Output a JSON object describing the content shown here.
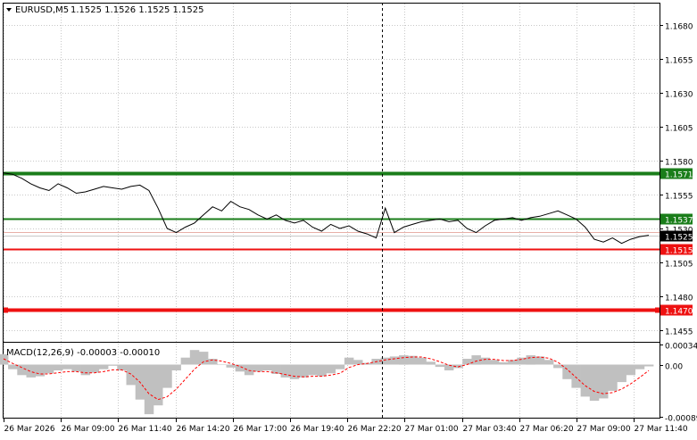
{
  "header": {
    "symbol_label": "EURUSD,M5",
    "ohlc_label": "1.1525 1.1526 1.1525 1.1525"
  },
  "macd_label": "MACD(12,26,9) -0.00003 -0.00010",
  "colors": {
    "price_line": "#000000",
    "green_level": "#1a7d1a",
    "red_level": "#ee1111",
    "macd_hist": "#c0c0c0",
    "macd_signal": "#ff0000",
    "grid": "#c8c8c8",
    "vline": "#000000",
    "current_price_tag": "#000000"
  },
  "chart_data": [
    {
      "type": "line",
      "title": "EURUSD,M5",
      "ylim": [
        1.1447,
        1.1696
      ],
      "y_ticks": [
        "1.1680",
        "1.1655",
        "1.1630",
        "1.1605",
        "1.1580",
        "1.1555",
        "1.1530",
        "1.1505",
        "1.1480",
        "1.1455"
      ],
      "x_ticks": [
        "26 Mar 2026",
        "26 Mar 09:00",
        "26 Mar 11:40",
        "26 Mar 14:20",
        "26 Mar 17:00",
        "26 Mar 19:40",
        "26 Mar 22:20",
        "27 Mar 01:00",
        "27 Mar 03:40",
        "27 Mar 06:20",
        "27 Mar 09:00",
        "27 Mar 11:40"
      ],
      "levels": [
        {
          "value": 1.1571,
          "label": "1.1571",
          "color": "green",
          "thick": true
        },
        {
          "value": 1.1537,
          "label": "1.1537",
          "color": "green",
          "thick": false
        },
        {
          "value": 1.1515,
          "label": "1.1515",
          "color": "red",
          "thick": false
        },
        {
          "value": 1.147,
          "label": "1.1470",
          "color": "red",
          "thick": true
        }
      ],
      "current_price": {
        "value": 1.1525,
        "label": "1.1525"
      },
      "series": [
        {
          "values": [
            1.1571,
            1.157,
            1.1567,
            1.1563,
            1.156,
            1.1558,
            1.1563,
            1.156,
            1.1556,
            1.1557,
            1.1559,
            1.1561,
            1.156,
            1.1559,
            1.1561,
            1.1562,
            1.1558,
            1.1545,
            1.153,
            1.1527,
            1.1531,
            1.1534,
            1.154,
            1.1546,
            1.1543,
            1.155,
            1.1546,
            1.1544,
            1.154,
            1.1537,
            1.154,
            1.1536,
            1.1534,
            1.1536,
            1.1531,
            1.1528,
            1.1533,
            1.153,
            1.1532,
            1.1528,
            1.1526,
            1.1523,
            1.1545,
            1.1527,
            1.1531,
            1.1533,
            1.1535,
            1.1536,
            1.1537,
            1.1535,
            1.1536,
            1.153,
            1.1527,
            1.1532,
            1.1536,
            1.1537,
            1.1538,
            1.1536,
            1.1538,
            1.1539,
            1.1541,
            1.1543,
            1.154,
            1.1537,
            1.1531,
            1.1522,
            1.152,
            1.1523,
            1.1519,
            1.1522,
            1.1524,
            1.1525
          ]
        }
      ]
    },
    {
      "type": "bar",
      "title": "MACD(12,26,9)",
      "ylim": [
        -0.00091,
        0.00036
      ],
      "y_ticks": [
        "0.00034",
        "0.00",
        "-0.00089"
      ],
      "series": [
        {
          "name": "MACD",
          "values": [
            0.00018,
            -8e-05,
            -0.00018,
            -0.00022,
            -0.0002,
            -0.00015,
            -0.0001,
            -8e-05,
            -0.00012,
            -0.00018,
            -0.00014,
            -8e-05,
            -2e-05,
            -0.0001,
            -0.00035,
            -0.0006,
            -0.00085,
            -0.0007,
            -0.0004,
            -0.0001,
            0.00012,
            0.00025,
            0.00022,
            0.0001,
            0.0,
            -5e-05,
            -0.00012,
            -0.00018,
            -0.00012,
            -0.0001,
            -0.00016,
            -0.00022,
            -0.00025,
            -0.00022,
            -0.00018,
            -0.0002,
            -0.00015,
            -8e-05,
            0.00012,
            8e-05,
            3e-05,
            0.0001,
            0.00012,
            0.00014,
            0.00016,
            0.00015,
            0.00012,
            5e-05,
            -4e-05,
            -0.0001,
            -6e-05,
            0.0001,
            0.00016,
            0.00012,
            8e-05,
            4e-05,
            8e-05,
            0.00012,
            0.00016,
            0.00014,
            8e-05,
            -6e-05,
            -0.00025,
            -0.0004,
            -0.00055,
            -0.00062,
            -0.00058,
            -0.00045,
            -0.0003,
            -0.00018,
            -8e-05,
            -3e-05
          ]
        },
        {
          "name": "Signal",
          "values": [
            0.0001,
            2e-05,
            -5e-05,
            -0.00012,
            -0.00016,
            -0.00016,
            -0.00014,
            -0.00012,
            -0.00012,
            -0.00014,
            -0.00014,
            -0.00012,
            -9e-05,
            -9e-05,
            -0.00016,
            -0.0003,
            -0.0005,
            -0.0006,
            -0.00055,
            -0.00042,
            -0.00025,
            -8e-05,
            5e-05,
            8e-05,
            6e-05,
            2e-05,
            -3e-05,
            -0.0001,
            -0.00012,
            -0.00012,
            -0.00014,
            -0.00017,
            -0.0002,
            -0.00021,
            -0.0002,
            -0.0002,
            -0.00018,
            -0.00015,
            -5e-05,
            0.0,
            2e-05,
            5e-05,
            8e-05,
            0.0001,
            0.00012,
            0.00013,
            0.00013,
            0.0001,
            5e-05,
            -1e-05,
            -4e-05,
            0.0,
            6e-05,
            9e-05,
            9e-05,
            7e-05,
            7e-05,
            9e-05,
            0.00012,
            0.00013,
            0.00011,
            4e-05,
            -8e-05,
            -0.00022,
            -0.00036,
            -0.00046,
            -0.0005,
            -0.00048,
            -0.00042,
            -0.00033,
            -0.00022,
            -0.0001
          ]
        }
      ]
    }
  ]
}
